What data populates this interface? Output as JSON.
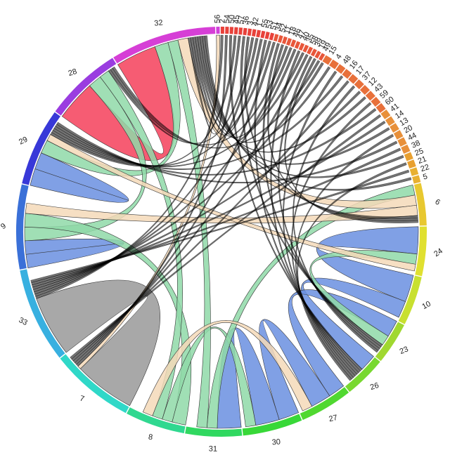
{
  "chart_data": {
    "type": "chord",
    "sectors": [
      {
        "label": "56",
        "value": 1,
        "color": "#d040d8"
      },
      {
        "label": "2",
        "value": 1,
        "color": "#e8413a"
      },
      {
        "label": "54",
        "value": 1,
        "color": "#e8413a"
      },
      {
        "label": "50",
        "value": 1,
        "color": "#e8413a"
      },
      {
        "label": "45",
        "value": 1,
        "color": "#e8413a"
      },
      {
        "label": "57",
        "value": 1,
        "color": "#e8413a"
      },
      {
        "label": "36",
        "value": 1,
        "color": "#e8413a"
      },
      {
        "label": "3",
        "value": 1,
        "color": "#e8413a"
      },
      {
        "label": "42",
        "value": 1,
        "color": "#e8413a"
      },
      {
        "label": "1",
        "value": 1,
        "color": "#e8413a"
      },
      {
        "label": "55",
        "value": 1,
        "color": "#e8413a"
      },
      {
        "label": "53",
        "value": 1,
        "color": "#e8413a"
      },
      {
        "label": "51",
        "value": 1,
        "color": "#e8413a"
      },
      {
        "label": "34",
        "value": 1,
        "color": "#e8563a"
      },
      {
        "label": "52",
        "value": 1,
        "color": "#e8563a"
      },
      {
        "label": "11",
        "value": 1,
        "color": "#e8563a"
      },
      {
        "label": "18",
        "value": 1,
        "color": "#e8563a"
      },
      {
        "label": "46",
        "value": 1,
        "color": "#e8563a"
      },
      {
        "label": "47",
        "value": 1,
        "color": "#e8563a"
      },
      {
        "label": "40",
        "value": 1,
        "color": "#e8563a"
      },
      {
        "label": "35",
        "value": 1,
        "color": "#e8563a"
      },
      {
        "label": "58",
        "value": 1,
        "color": "#e8563a"
      },
      {
        "label": "39",
        "value": 1,
        "color": "#e8563a"
      },
      {
        "label": "19",
        "value": 1,
        "color": "#e8563a"
      },
      {
        "label": "49",
        "value": 1,
        "color": "#e8563a"
      },
      {
        "label": "15",
        "value": 2,
        "color": "#e8703a"
      },
      {
        "label": "4",
        "value": 2,
        "color": "#e8703a"
      },
      {
        "label": "48",
        "value": 2,
        "color": "#e8703a"
      },
      {
        "label": "16",
        "value": 2,
        "color": "#e8703a"
      },
      {
        "label": "17",
        "value": 2,
        "color": "#e8703a"
      },
      {
        "label": "37",
        "value": 2,
        "color": "#e8703a"
      },
      {
        "label": "12",
        "value": 2,
        "color": "#e8703a"
      },
      {
        "label": "43",
        "value": 2,
        "color": "#e8703a"
      },
      {
        "label": "59",
        "value": 2,
        "color": "#e8703a"
      },
      {
        "label": "60",
        "value": 2,
        "color": "#e8703a"
      },
      {
        "label": "41",
        "value": 2,
        "color": "#e8903a"
      },
      {
        "label": "14",
        "value": 2,
        "color": "#e8903a"
      },
      {
        "label": "13",
        "value": 2,
        "color": "#e8903a"
      },
      {
        "label": "20",
        "value": 2,
        "color": "#e8903a"
      },
      {
        "label": "44",
        "value": 2,
        "color": "#e8903a"
      },
      {
        "label": "38",
        "value": 2,
        "color": "#e8903a"
      },
      {
        "label": "25",
        "value": 2,
        "color": "#e8a030"
      },
      {
        "label": "21",
        "value": 2,
        "color": "#e8a030"
      },
      {
        "label": "22",
        "value": 2,
        "color": "#e8b030"
      },
      {
        "label": "5",
        "value": 2,
        "color": "#e8b030"
      },
      {
        "label": "6",
        "value": 12,
        "color": "#e8c830"
      },
      {
        "label": "24",
        "value": 14,
        "color": "#e0e030"
      },
      {
        "label": "10",
        "value": 14,
        "color": "#c8e030"
      },
      {
        "label": "23",
        "value": 12,
        "color": "#a0d830"
      },
      {
        "label": "26",
        "value": 12,
        "color": "#78d830"
      },
      {
        "label": "27",
        "value": 15,
        "color": "#50d830"
      },
      {
        "label": "30",
        "value": 17,
        "color": "#38d838"
      },
      {
        "label": "31",
        "value": 16,
        "color": "#30d860"
      },
      {
        "label": "8",
        "value": 17,
        "color": "#30d890"
      },
      {
        "label": "7",
        "value": 24,
        "color": "#30d8c8"
      },
      {
        "label": "33",
        "value": 27,
        "color": "#38b0e0"
      },
      {
        "label": "9",
        "value": 24,
        "color": "#3a70d8"
      },
      {
        "label": "29",
        "value": 22,
        "color": "#3838d8"
      },
      {
        "label": "28",
        "value": 22,
        "color": "#9a3de0"
      },
      {
        "label": "32",
        "value": 30,
        "color": "#d63fd6"
      }
    ],
    "chords": [
      {
        "source": "32",
        "target": "28",
        "value": 12,
        "color": "#f5405a"
      },
      {
        "source": "29",
        "target": "29",
        "value": 5,
        "color": "#6a8fe0"
      },
      {
        "source": "9",
        "target": "9",
        "value": 4,
        "color": "#6a8fe0"
      },
      {
        "source": "33",
        "target": "7",
        "value": 18,
        "color": "#999999"
      },
      {
        "source": "24",
        "target": "10",
        "value": 8,
        "color": "#6a8fe0"
      },
      {
        "source": "10",
        "target": "26",
        "value": 5,
        "color": "#6a8fe0"
      },
      {
        "source": "23",
        "target": "27",
        "value": 5,
        "color": "#6a8fe0"
      },
      {
        "source": "27",
        "target": "30",
        "value": 6,
        "color": "#6a8fe0"
      },
      {
        "source": "30",
        "target": "31",
        "value": 7,
        "color": "#6a8fe0"
      },
      {
        "source": "32",
        "target": "29",
        "value": 4,
        "color": "#8fd9a8"
      },
      {
        "source": "28",
        "target": "9",
        "value": 4,
        "color": "#8fd9a8"
      },
      {
        "source": "9",
        "target": "8",
        "value": 4,
        "color": "#8fd9a8"
      },
      {
        "source": "8",
        "target": "30",
        "value": 3,
        "color": "#8fd9a8"
      },
      {
        "source": "31",
        "target": "6",
        "value": 3,
        "color": "#8fd9a8"
      },
      {
        "source": "24",
        "target": "23",
        "value": 3,
        "color": "#8fd9a8"
      },
      {
        "source": "32",
        "target": "31",
        "value": 3,
        "color": "#8fd9a8"
      },
      {
        "source": "28",
        "target": "8",
        "value": 3,
        "color": "#8fd9a8"
      },
      {
        "source": "32",
        "target": "6",
        "value": 3,
        "color": "#f5d9b8"
      },
      {
        "source": "56",
        "target": "7",
        "value": 1,
        "color": "#f5d9b8"
      },
      {
        "source": "8",
        "target": "27",
        "value": 3,
        "color": "#f5d9b8"
      },
      {
        "source": "9",
        "target": "6",
        "value": 3,
        "color": "#f5d9b8"
      },
      {
        "source": "29",
        "target": "24",
        "value": 2,
        "color": "#f5d9b8"
      },
      {
        "source": "2",
        "target": "33",
        "value": 0.7,
        "color": "#000000"
      },
      {
        "source": "54",
        "target": "32",
        "value": 0.7,
        "color": "#000000"
      },
      {
        "source": "50",
        "target": "26",
        "value": 0.7,
        "color": "#000000"
      },
      {
        "source": "45",
        "target": "29",
        "value": 0.7,
        "color": "#000000"
      },
      {
        "source": "57",
        "target": "7",
        "value": 0.7,
        "color": "#000000"
      },
      {
        "source": "36",
        "target": "23",
        "value": 0.7,
        "color": "#000000"
      },
      {
        "source": "3",
        "target": "6",
        "value": 0.7,
        "color": "#000000"
      },
      {
        "source": "42",
        "target": "28",
        "value": 0.7,
        "color": "#000000"
      },
      {
        "source": "1",
        "target": "33",
        "value": 0.7,
        "color": "#000000"
      },
      {
        "source": "55",
        "target": "32",
        "value": 0.7,
        "color": "#000000"
      },
      {
        "source": "53",
        "target": "26",
        "value": 0.7,
        "color": "#000000"
      },
      {
        "source": "51",
        "target": "29",
        "value": 0.7,
        "color": "#000000"
      },
      {
        "source": "34",
        "target": "7",
        "value": 0.7,
        "color": "#000000"
      },
      {
        "source": "52",
        "target": "23",
        "value": 0.7,
        "color": "#000000"
      },
      {
        "source": "11",
        "target": "6",
        "value": 0.7,
        "color": "#000000"
      },
      {
        "source": "18",
        "target": "28",
        "value": 0.7,
        "color": "#000000"
      },
      {
        "source": "46",
        "target": "33",
        "value": 0.7,
        "color": "#000000"
      },
      {
        "source": "47",
        "target": "32",
        "value": 0.7,
        "color": "#000000"
      },
      {
        "source": "40",
        "target": "26",
        "value": 0.7,
        "color": "#000000"
      },
      {
        "source": "35",
        "target": "29",
        "value": 0.7,
        "color": "#000000"
      },
      {
        "source": "58",
        "target": "7",
        "value": 0.7,
        "color": "#000000"
      },
      {
        "source": "39",
        "target": "23",
        "value": 0.7,
        "color": "#000000"
      },
      {
        "source": "19",
        "target": "6",
        "value": 0.7,
        "color": "#000000"
      },
      {
        "source": "49",
        "target": "28",
        "value": 0.7,
        "color": "#000000"
      },
      {
        "source": "15",
        "target": "33",
        "value": 0.7,
        "color": "#000000"
      },
      {
        "source": "4",
        "target": "32",
        "value": 0.7,
        "color": "#000000"
      },
      {
        "source": "48",
        "target": "26",
        "value": 0.7,
        "color": "#000000"
      },
      {
        "source": "16",
        "target": "29",
        "value": 0.7,
        "color": "#000000"
      },
      {
        "source": "17",
        "target": "7",
        "value": 0.7,
        "color": "#000000"
      },
      {
        "source": "37",
        "target": "23",
        "value": 0.7,
        "color": "#000000"
      },
      {
        "source": "12",
        "target": "33",
        "value": 0.7,
        "color": "#000000"
      },
      {
        "source": "43",
        "target": "32",
        "value": 0.7,
        "color": "#000000"
      },
      {
        "source": "59",
        "target": "26",
        "value": 0.7,
        "color": "#000000"
      },
      {
        "source": "60",
        "target": "29",
        "value": 0.7,
        "color": "#000000"
      },
      {
        "source": "41",
        "target": "7",
        "value": 0.7,
        "color": "#000000"
      },
      {
        "source": "14",
        "target": "33",
        "value": 0.7,
        "color": "#000000"
      },
      {
        "source": "13",
        "target": "32",
        "value": 0.7,
        "color": "#000000"
      },
      {
        "source": "20",
        "target": "26",
        "value": 0.7,
        "color": "#000000"
      },
      {
        "source": "44",
        "target": "29",
        "value": 0.7,
        "color": "#000000"
      },
      {
        "source": "38",
        "target": "33",
        "value": 0.7,
        "color": "#000000"
      },
      {
        "source": "25",
        "target": "32",
        "value": 0.7,
        "color": "#000000"
      },
      {
        "source": "21",
        "target": "26",
        "value": 0.7,
        "color": "#000000"
      },
      {
        "source": "22",
        "target": "33",
        "value": 0.7,
        "color": "#000000"
      },
      {
        "source": "5",
        "target": "32",
        "value": 0.7,
        "color": "#000000"
      }
    ]
  }
}
